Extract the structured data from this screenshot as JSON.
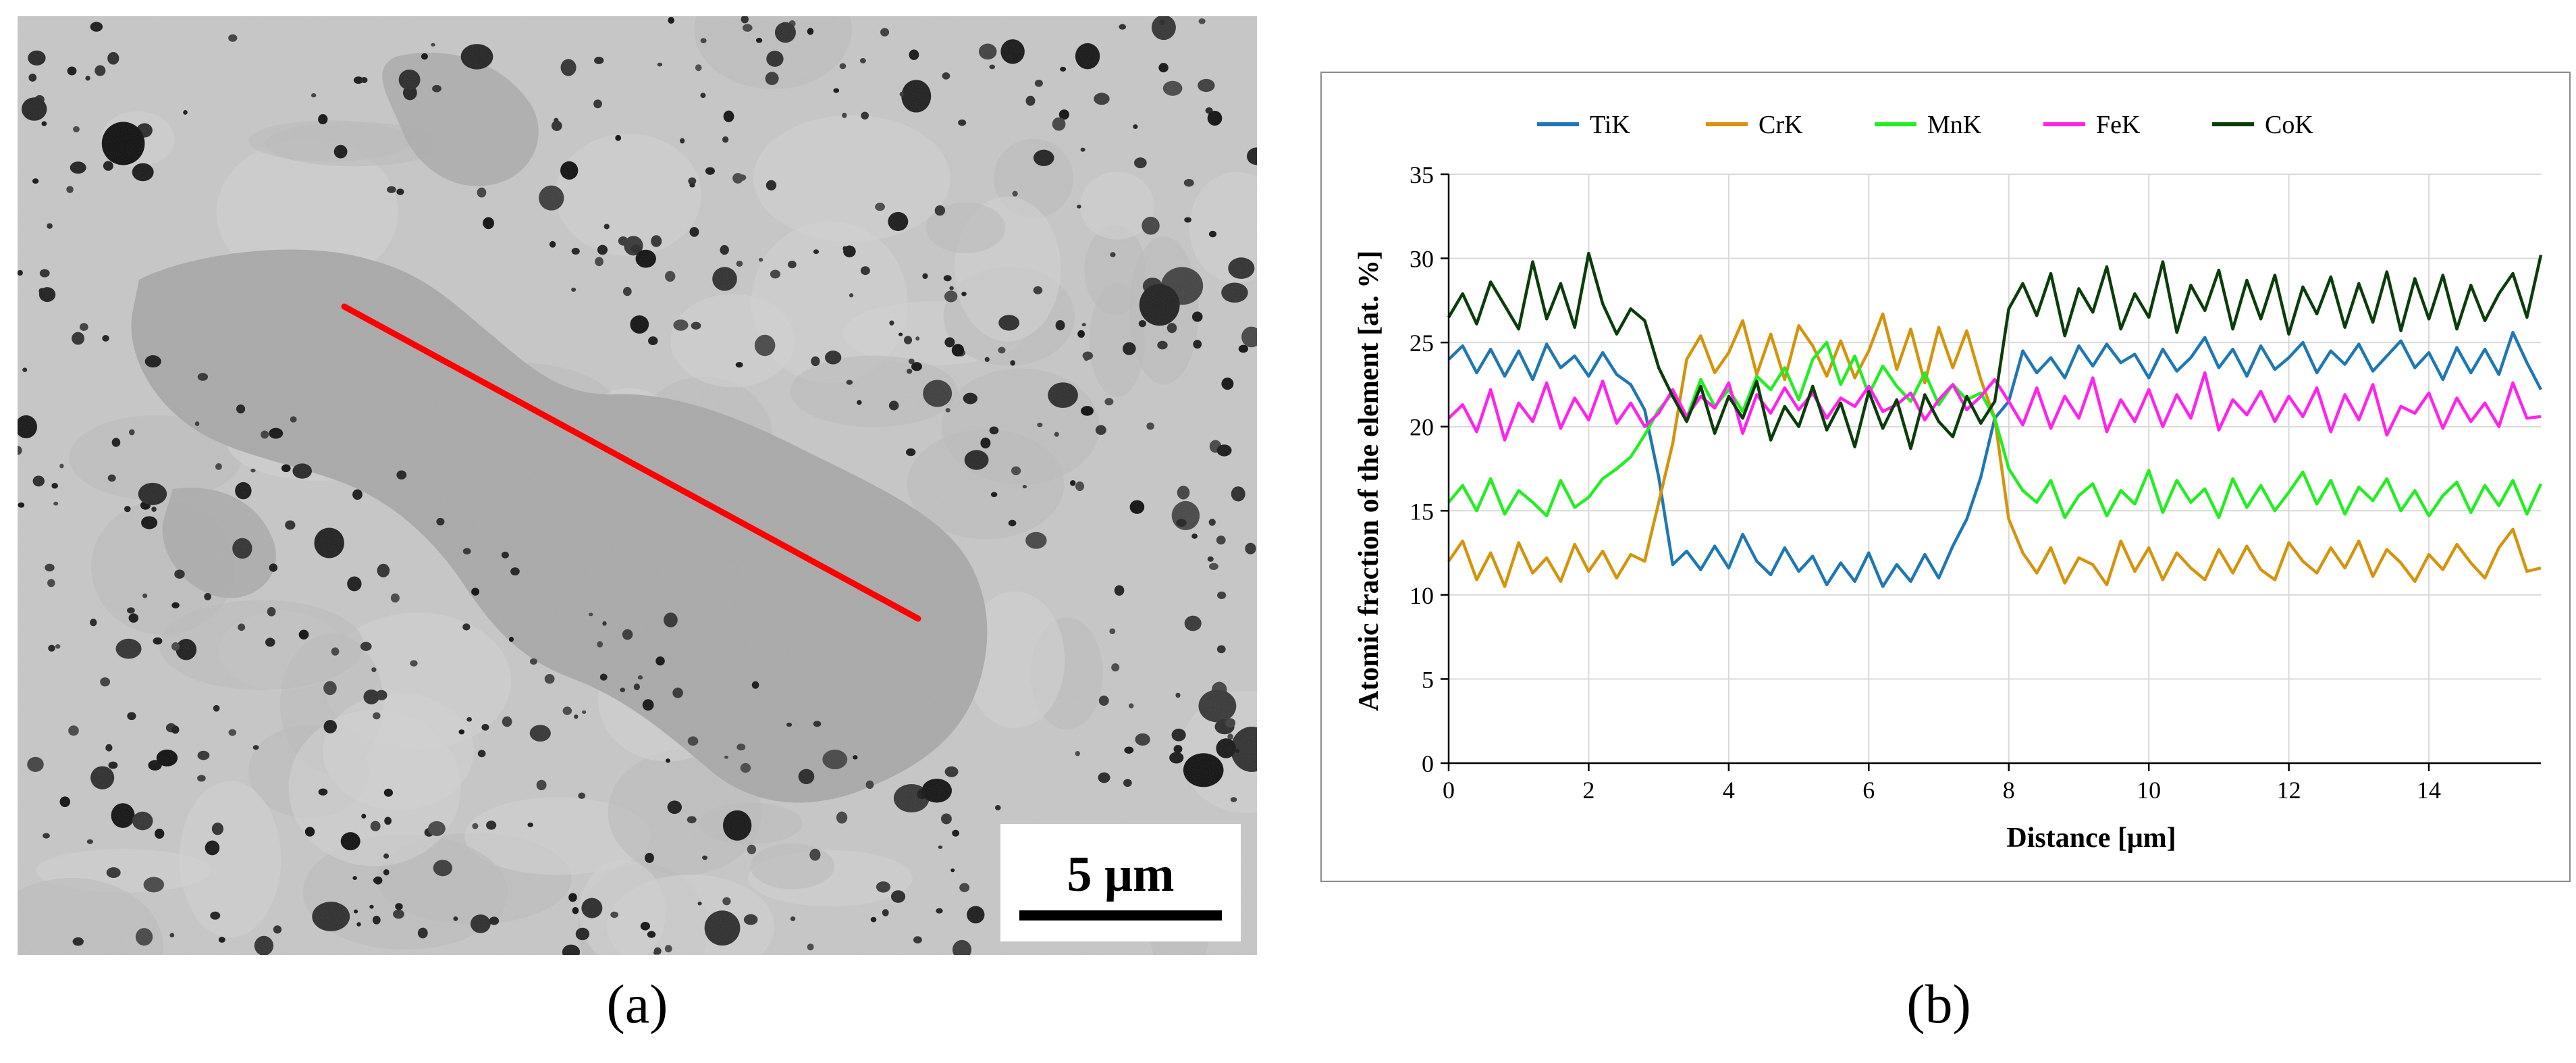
{
  "panel_a": {
    "label": "(a)",
    "scale_bar_label": "5 μm",
    "line_color": "#ff0000"
  },
  "panel_b": {
    "label": "(b)"
  },
  "chart_data": {
    "type": "line",
    "title": "",
    "xlabel": "Distance [μm]",
    "ylabel": "Atomic fraction of the element [at. %]",
    "xlim": [
      0,
      15.6
    ],
    "ylim": [
      0,
      35
    ],
    "xticks": [
      0,
      2,
      4,
      6,
      8,
      10,
      12,
      14
    ],
    "yticks": [
      0,
      5,
      10,
      15,
      20,
      25,
      30,
      35
    ],
    "grid": true,
    "legend_position": "top",
    "x": [
      0.0,
      0.2,
      0.4,
      0.6,
      0.8,
      1.0,
      1.2,
      1.4,
      1.6,
      1.8,
      2.0,
      2.2,
      2.4,
      2.6,
      2.8,
      3.0,
      3.2,
      3.4,
      3.6,
      3.8,
      4.0,
      4.2,
      4.4,
      4.6,
      4.8,
      5.0,
      5.2,
      5.4,
      5.6,
      5.8,
      6.0,
      6.2,
      6.4,
      6.6,
      6.8,
      7.0,
      7.2,
      7.4,
      7.6,
      7.8,
      8.0,
      8.2,
      8.4,
      8.6,
      8.8,
      9.0,
      9.2,
      9.4,
      9.6,
      9.8,
      10.0,
      10.2,
      10.4,
      10.6,
      10.8,
      11.0,
      11.2,
      11.4,
      11.6,
      11.8,
      12.0,
      12.2,
      12.4,
      12.6,
      12.8,
      13.0,
      13.2,
      13.4,
      13.6,
      13.8,
      14.0,
      14.2,
      14.4,
      14.6,
      14.8,
      15.0,
      15.2,
      15.4,
      15.6
    ],
    "series": [
      {
        "name": "TiK",
        "color": "#1f77b4",
        "values": [
          24.0,
          24.8,
          23.2,
          24.6,
          23.0,
          24.5,
          22.8,
          24.9,
          23.5,
          24.2,
          23.0,
          24.4,
          23.1,
          22.5,
          21.0,
          17.0,
          11.8,
          12.6,
          11.5,
          12.9,
          11.6,
          13.6,
          12.0,
          11.2,
          12.8,
          11.4,
          12.3,
          10.6,
          11.9,
          10.8,
          12.5,
          10.5,
          11.8,
          10.8,
          12.4,
          11.0,
          12.9,
          14.5,
          17.0,
          20.5,
          21.5,
          24.5,
          23.2,
          24.1,
          22.9,
          24.8,
          23.6,
          24.9,
          23.8,
          24.3,
          22.9,
          24.6,
          23.3,
          24.1,
          25.3,
          23.5,
          24.6,
          23.0,
          24.8,
          23.4,
          24.1,
          25.0,
          23.2,
          24.5,
          23.7,
          24.9,
          23.3,
          24.2,
          25.1,
          23.5,
          24.4,
          22.8,
          24.7,
          23.2,
          24.6,
          23.1,
          25.6,
          23.8,
          22.2
        ]
      },
      {
        "name": "CrK",
        "color": "#d4940c",
        "values": [
          12.0,
          13.2,
          10.9,
          12.5,
          10.5,
          13.1,
          11.3,
          12.2,
          10.8,
          13.0,
          11.4,
          12.6,
          11.0,
          12.4,
          12.0,
          15.5,
          19.0,
          24.0,
          25.4,
          23.2,
          24.4,
          26.3,
          23.1,
          25.5,
          22.8,
          26.0,
          24.8,
          23.0,
          25.1,
          22.9,
          24.5,
          26.7,
          23.4,
          25.8,
          22.6,
          25.9,
          23.5,
          25.7,
          22.8,
          20.5,
          14.5,
          12.5,
          11.3,
          12.8,
          10.7,
          12.2,
          11.8,
          10.6,
          13.2,
          11.4,
          12.8,
          10.9,
          12.5,
          11.6,
          10.9,
          12.7,
          11.3,
          12.9,
          11.5,
          10.9,
          13.1,
          12.0,
          11.3,
          12.8,
          11.6,
          13.2,
          11.1,
          12.7,
          11.9,
          10.8,
          12.4,
          11.5,
          13.0,
          11.9,
          11.0,
          12.8,
          13.9,
          11.4,
          11.6
        ]
      },
      {
        "name": "MnK",
        "color": "#22ee22",
        "values": [
          15.5,
          16.5,
          15.0,
          16.9,
          14.8,
          16.2,
          15.5,
          14.7,
          16.8,
          15.2,
          15.8,
          16.9,
          17.5,
          18.2,
          19.5,
          21.0,
          22.0,
          20.5,
          22.8,
          21.2,
          22.2,
          20.9,
          23.0,
          22.2,
          23.5,
          21.6,
          24.0,
          25.0,
          22.5,
          24.2,
          21.9,
          23.6,
          22.4,
          21.5,
          23.2,
          21.3,
          22.5,
          21.6,
          22.0,
          20.5,
          17.5,
          16.2,
          15.5,
          16.8,
          14.6,
          15.9,
          16.6,
          14.7,
          16.2,
          15.4,
          17.4,
          14.9,
          16.8,
          15.5,
          16.3,
          14.6,
          16.9,
          15.2,
          16.5,
          15.0,
          16.1,
          17.3,
          15.4,
          16.8,
          14.8,
          16.4,
          15.6,
          16.9,
          15.0,
          16.2,
          14.7,
          15.9,
          16.7,
          14.9,
          16.5,
          15.3,
          16.8,
          14.8,
          16.6
        ]
      },
      {
        "name": "FeK",
        "color": "#ff22ee",
        "values": [
          20.5,
          21.3,
          19.7,
          22.2,
          19.2,
          21.4,
          20.3,
          22.6,
          19.9,
          21.7,
          20.4,
          22.7,
          20.2,
          21.4,
          20.0,
          20.8,
          22.2,
          20.6,
          21.8,
          21.1,
          22.6,
          19.6,
          21.9,
          20.8,
          22.3,
          21.0,
          22.0,
          20.5,
          21.7,
          21.2,
          22.4,
          20.9,
          21.3,
          22.0,
          20.4,
          21.6,
          22.5,
          21.0,
          21.8,
          22.8,
          21.5,
          20.1,
          22.3,
          19.9,
          21.8,
          20.5,
          22.9,
          19.7,
          21.6,
          20.3,
          22.2,
          20.0,
          21.9,
          20.5,
          23.2,
          19.8,
          21.6,
          20.7,
          22.1,
          20.3,
          21.8,
          20.6,
          22.3,
          19.7,
          21.9,
          20.4,
          22.5,
          19.5,
          21.2,
          20.8,
          22.0,
          19.9,
          21.7,
          20.3,
          21.4,
          20.0,
          22.6,
          20.5,
          20.6
        ]
      },
      {
        "name": "CoK",
        "color": "#0b3d0b",
        "values": [
          26.5,
          27.9,
          26.1,
          28.6,
          27.2,
          25.8,
          29.8,
          26.4,
          28.5,
          25.9,
          30.3,
          27.3,
          25.5,
          27.0,
          26.3,
          23.5,
          21.8,
          20.3,
          22.4,
          19.6,
          21.8,
          20.5,
          22.7,
          19.2,
          21.2,
          20.0,
          22.4,
          19.8,
          21.4,
          18.8,
          22.1,
          19.9,
          21.6,
          18.7,
          21.9,
          20.3,
          19.4,
          21.8,
          20.2,
          21.5,
          27.0,
          28.5,
          26.6,
          29.1,
          25.4,
          28.2,
          26.8,
          29.5,
          25.8,
          27.9,
          26.5,
          29.8,
          25.6,
          28.4,
          26.9,
          29.3,
          25.8,
          28.7,
          26.4,
          29.0,
          25.5,
          28.3,
          26.7,
          28.9,
          25.9,
          28.5,
          26.2,
          29.2,
          25.7,
          28.8,
          26.4,
          29.0,
          25.8,
          28.4,
          26.3,
          27.9,
          29.1,
          26.5,
          30.2
        ]
      }
    ]
  }
}
